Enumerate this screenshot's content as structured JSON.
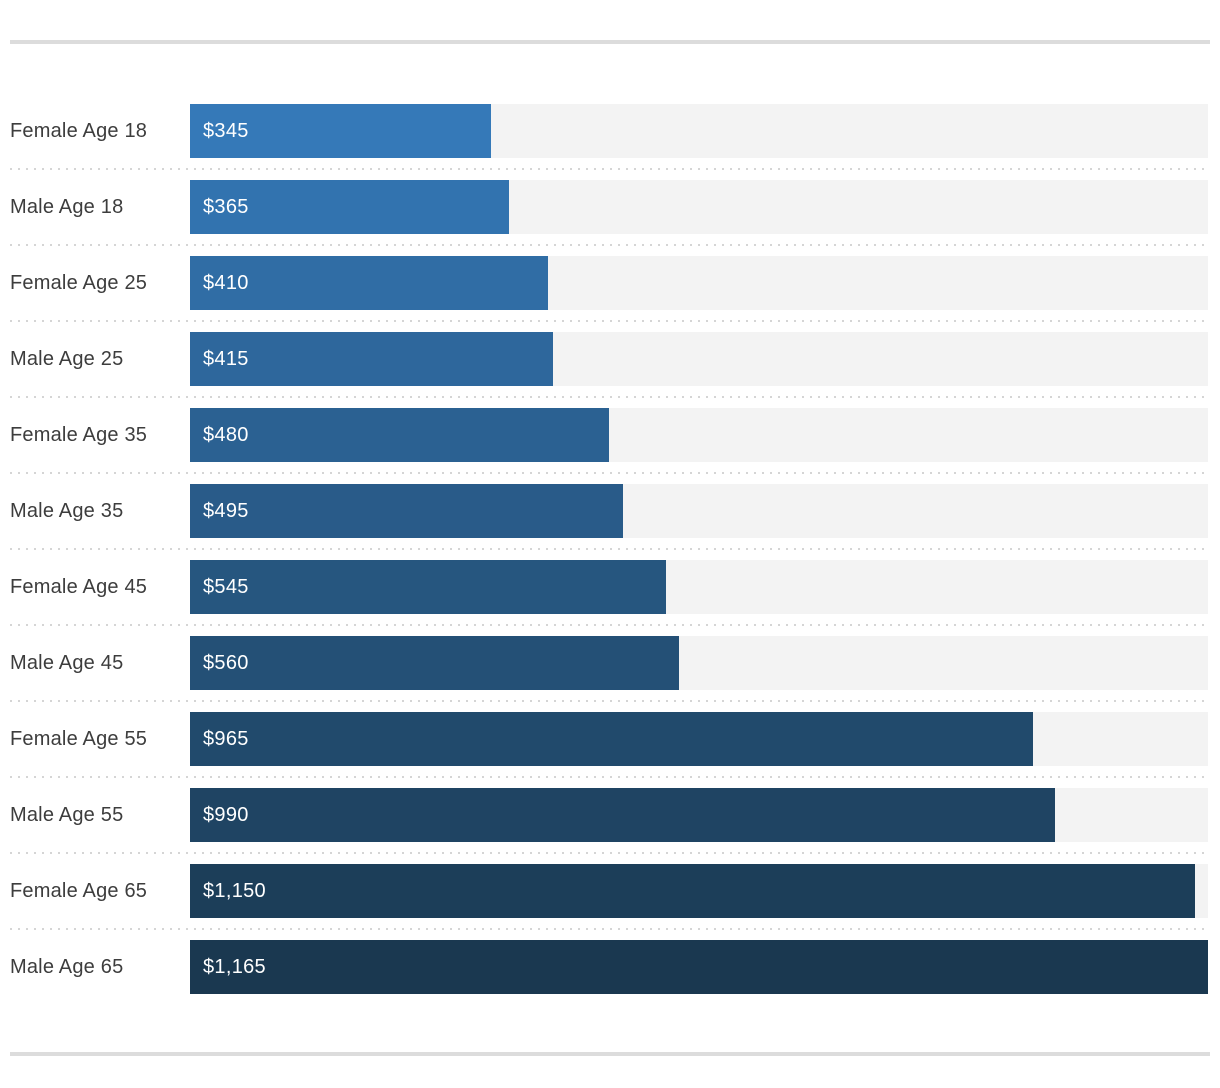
{
  "chart_data": {
    "type": "bar",
    "orientation": "horizontal",
    "title": "",
    "xlabel": "",
    "ylabel": "",
    "xlim": [
      0,
      1165
    ],
    "grid": false,
    "legend": false,
    "categories": [
      "Female Age 18",
      "Male Age 18",
      "Female Age 25",
      "Male Age 25",
      "Female Age 35",
      "Male Age 35",
      "Female Age 45",
      "Male Age 45",
      "Female Age 55",
      "Male Age 55",
      "Female Age 65",
      "Male Age 65"
    ],
    "values": [
      345,
      365,
      410,
      415,
      480,
      495,
      545,
      560,
      965,
      990,
      1150,
      1165
    ],
    "value_labels": [
      "$345",
      "$365",
      "$410",
      "$415",
      "$480",
      "$495",
      "$545",
      "$560",
      "$965",
      "$990",
      "$1,150",
      "$1,165"
    ],
    "bar_colors": [
      "#3579b8",
      "#3273af",
      "#306da5",
      "#2e679c",
      "#2b6192",
      "#295b89",
      "#26567f",
      "#245076",
      "#214a6c",
      "#1f4463",
      "#1c3e59",
      "#1a3850"
    ],
    "track_color": "#f3f3f3",
    "label_color": "#3d3d3d",
    "value_text_color": "#ffffff",
    "separator_color": "#d5d5d5",
    "divider_color": "#dcdcdc",
    "background": "#ffffff"
  }
}
